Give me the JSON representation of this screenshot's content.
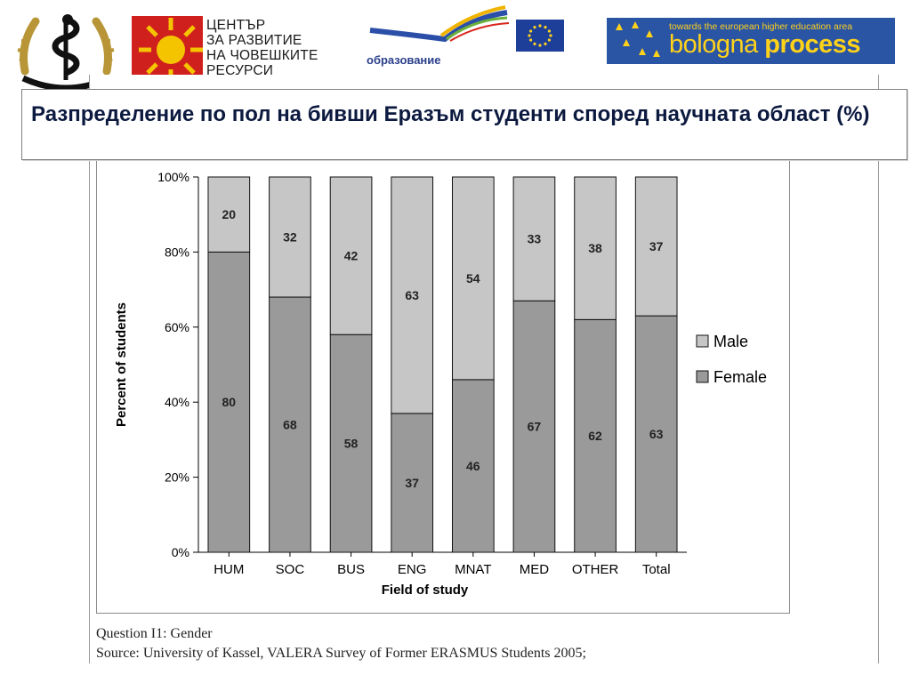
{
  "slide": {
    "title": "Разпределение по пол на бивши Еразъм студенти според научната област (%)"
  },
  "logos": {
    "center_org_lines": [
      "ЦЕНТЪР",
      "ЗА РАЗВИТИЕ",
      "НА ЧОВЕШКИТЕ",
      "РЕСУРСИ"
    ],
    "program_text": "образование",
    "bologna_tagline": "towards the european higher education area",
    "bologna_name_light": "bologna ",
    "bologna_name_bold": "process"
  },
  "notes": {
    "question": "Question I1: Gender",
    "source": "Source: University of Kassel, VALERA Survey of Former ERASMUS Students 2005;"
  },
  "colors": {
    "female": "#9a9a9a",
    "male": "#c6c6c6",
    "title_text": "#0d1a40"
  },
  "chart_data": {
    "type": "bar",
    "stacked": true,
    "categories": [
      "HUM",
      "SOC",
      "BUS",
      "ENG",
      "MNAT",
      "MED",
      "OTHER",
      "Total"
    ],
    "series": [
      {
        "name": "Female",
        "values": [
          80,
          68,
          58,
          37,
          46,
          67,
          62,
          63
        ]
      },
      {
        "name": "Male",
        "values": [
          20,
          32,
          42,
          63,
          54,
          33,
          38,
          37
        ]
      }
    ],
    "legend_order": [
      "Male",
      "Female"
    ],
    "xlabel": "Field of study",
    "ylabel": "Percent of students",
    "ylim": [
      0,
      100
    ],
    "yticks": [
      "0%",
      "20%",
      "40%",
      "60%",
      "80%",
      "100%"
    ],
    "grid": false,
    "legend_position": "right"
  }
}
